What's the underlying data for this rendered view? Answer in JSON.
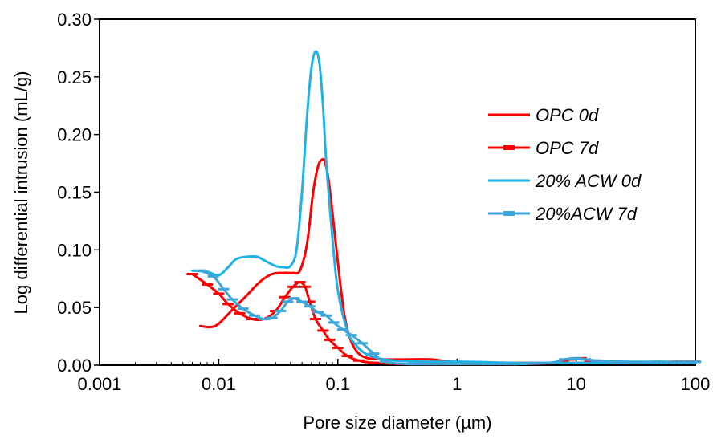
{
  "chart_data": {
    "type": "line",
    "title": "",
    "xlabel": "Pore size diameter (µm)",
    "ylabel": "Log differential intrusion  (mL/g)",
    "xscale": "log",
    "xlim": [
      0.001,
      100
    ],
    "ylim": [
      0,
      0.3
    ],
    "x_ticks": [
      0.001,
      0.01,
      0.1,
      1,
      10,
      100
    ],
    "x_tick_labels": [
      "0.001",
      "0.01",
      "0.1",
      "1",
      "10",
      "100"
    ],
    "y_ticks": [
      0,
      0.05,
      0.1,
      0.15,
      0.2,
      0.25,
      0.3
    ],
    "y_tick_labels": [
      "0.00",
      "0.05",
      "0.10",
      "0.15",
      "0.20",
      "0.25",
      "0.30"
    ],
    "grid": false,
    "legend_position": "top-right",
    "series": [
      {
        "name": "OPC 0d",
        "color": "#ff0000",
        "marker": "none",
        "points": [
          [
            0.007,
            0.034
          ],
          [
            0.0085,
            0.033
          ],
          [
            0.01,
            0.036
          ],
          [
            0.013,
            0.048
          ],
          [
            0.017,
            0.06
          ],
          [
            0.022,
            0.072
          ],
          [
            0.028,
            0.079
          ],
          [
            0.035,
            0.08
          ],
          [
            0.042,
            0.08
          ],
          [
            0.048,
            0.082
          ],
          [
            0.055,
            0.105
          ],
          [
            0.062,
            0.15
          ],
          [
            0.068,
            0.172
          ],
          [
            0.073,
            0.178
          ],
          [
            0.078,
            0.176
          ],
          [
            0.085,
            0.155
          ],
          [
            0.095,
            0.11
          ],
          [
            0.105,
            0.07
          ],
          [
            0.115,
            0.04
          ],
          [
            0.13,
            0.02
          ],
          [
            0.15,
            0.01
          ],
          [
            0.18,
            0.006
          ],
          [
            0.25,
            0.005
          ],
          [
            0.4,
            0.005
          ],
          [
            0.6,
            0.005
          ],
          [
            0.9,
            0.003
          ],
          [
            1.5,
            0.002
          ],
          [
            3,
            0.002
          ],
          [
            7,
            0.002
          ],
          [
            15,
            0.002
          ],
          [
            30,
            0.002
          ],
          [
            60,
            0.002
          ],
          [
            100,
            0.002
          ]
        ]
      },
      {
        "name": "OPC 7d",
        "color": "#ff0000",
        "marker": "dash",
        "points": [
          [
            0.006,
            0.079
          ],
          [
            0.008,
            0.07
          ],
          [
            0.01,
            0.062
          ],
          [
            0.012,
            0.053
          ],
          [
            0.015,
            0.045
          ],
          [
            0.019,
            0.04
          ],
          [
            0.024,
            0.04
          ],
          [
            0.03,
            0.047
          ],
          [
            0.036,
            0.059
          ],
          [
            0.042,
            0.068
          ],
          [
            0.048,
            0.072
          ],
          [
            0.053,
            0.068
          ],
          [
            0.058,
            0.055
          ],
          [
            0.065,
            0.04
          ],
          [
            0.075,
            0.03
          ],
          [
            0.085,
            0.022
          ],
          [
            0.1,
            0.015
          ],
          [
            0.12,
            0.008
          ],
          [
            0.15,
            0.004
          ],
          [
            0.2,
            0.002
          ],
          [
            0.4,
            0.001
          ],
          [
            1,
            0.001
          ],
          [
            3,
            0.001
          ],
          [
            7,
            0.002
          ],
          [
            9,
            0.005
          ],
          [
            11,
            0.006
          ],
          [
            13,
            0.003
          ],
          [
            20,
            0.002
          ],
          [
            40,
            0.002
          ],
          [
            70,
            0.003
          ],
          [
            100,
            0.003
          ]
        ]
      },
      {
        "name": "20% ACW 0d",
        "color": "#1fb2e6",
        "marker": "none",
        "points": [
          [
            0.006,
            0.082
          ],
          [
            0.008,
            0.081
          ],
          [
            0.01,
            0.078
          ],
          [
            0.012,
            0.085
          ],
          [
            0.014,
            0.092
          ],
          [
            0.017,
            0.094
          ],
          [
            0.021,
            0.094
          ],
          [
            0.025,
            0.09
          ],
          [
            0.03,
            0.086
          ],
          [
            0.035,
            0.085
          ],
          [
            0.04,
            0.086
          ],
          [
            0.045,
            0.1
          ],
          [
            0.05,
            0.15
          ],
          [
            0.055,
            0.215
          ],
          [
            0.06,
            0.258
          ],
          [
            0.065,
            0.272
          ],
          [
            0.07,
            0.262
          ],
          [
            0.075,
            0.225
          ],
          [
            0.08,
            0.175
          ],
          [
            0.09,
            0.11
          ],
          [
            0.1,
            0.065
          ],
          [
            0.12,
            0.03
          ],
          [
            0.14,
            0.018
          ],
          [
            0.17,
            0.01
          ],
          [
            0.22,
            0.006
          ],
          [
            0.3,
            0.004
          ],
          [
            0.6,
            0.003
          ],
          [
            1.2,
            0.003
          ],
          [
            3,
            0.002
          ],
          [
            7,
            0.002
          ],
          [
            15,
            0.002
          ],
          [
            40,
            0.002
          ],
          [
            100,
            0.002
          ]
        ]
      },
      {
        "name": "20%ACW 7d",
        "color": "#3da6d8",
        "marker": "dash",
        "points": [
          [
            0.007,
            0.082
          ],
          [
            0.009,
            0.077
          ],
          [
            0.011,
            0.066
          ],
          [
            0.013,
            0.057
          ],
          [
            0.016,
            0.049
          ],
          [
            0.02,
            0.043
          ],
          [
            0.024,
            0.04
          ],
          [
            0.028,
            0.041
          ],
          [
            0.033,
            0.047
          ],
          [
            0.038,
            0.055
          ],
          [
            0.043,
            0.058
          ],
          [
            0.05,
            0.055
          ],
          [
            0.058,
            0.051
          ],
          [
            0.068,
            0.046
          ],
          [
            0.08,
            0.043
          ],
          [
            0.092,
            0.037
          ],
          [
            0.11,
            0.031
          ],
          [
            0.13,
            0.026
          ],
          [
            0.16,
            0.019
          ],
          [
            0.2,
            0.01
          ],
          [
            0.25,
            0.003
          ],
          [
            0.4,
            0.001
          ],
          [
            1,
            0.001
          ],
          [
            3,
            0.001
          ],
          [
            6,
            0.002
          ],
          [
            8,
            0.005
          ],
          [
            10,
            0.006
          ],
          [
            12,
            0.005
          ],
          [
            15,
            0.004
          ],
          [
            25,
            0.003
          ],
          [
            50,
            0.003
          ],
          [
            100,
            0.003
          ]
        ]
      }
    ]
  }
}
